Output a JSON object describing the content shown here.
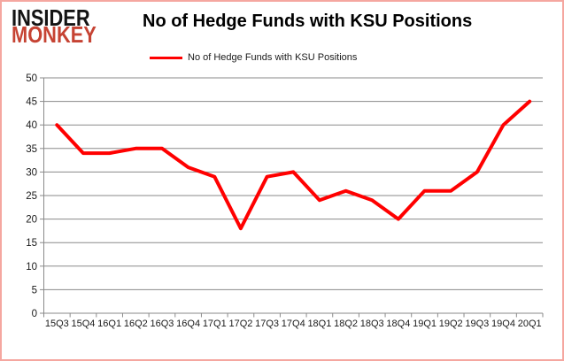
{
  "logo": {
    "line1": "INSIDER",
    "line2": "MONKEY"
  },
  "header": {
    "title": "No of Hedge Funds with KSU Positions"
  },
  "legend": {
    "label": "No of Hedge Funds with KSU Positions"
  },
  "colors": {
    "line": "#ff0000",
    "grid": "#8a8a8a",
    "axis": "#8a8a8a",
    "tick_label": "#1a1a1a",
    "frame_border": "#f5a7a0",
    "logo_accent": "#c64333",
    "logo_main": "#141414"
  },
  "chart_data": {
    "type": "line",
    "title": "No of Hedge Funds with KSU Positions",
    "categories": [
      "15Q3",
      "15Q4",
      "16Q1",
      "16Q2",
      "16Q3",
      "16Q4",
      "17Q1",
      "17Q2",
      "17Q3",
      "17Q4",
      "18Q1",
      "18Q2",
      "18Q3",
      "18Q4",
      "19Q1",
      "19Q2",
      "19Q3",
      "19Q4",
      "20Q1"
    ],
    "series": [
      {
        "name": "No of Hedge Funds with KSU Positions",
        "color": "#ff0000",
        "values": [
          40,
          34,
          34,
          35,
          35,
          31,
          29,
          18,
          29,
          30,
          24,
          26,
          24,
          20,
          26,
          26,
          30,
          40,
          45
        ]
      }
    ],
    "xlabel": "",
    "ylabel": "",
    "ylim": [
      0,
      50
    ],
    "ytick_step": 5,
    "grid": true,
    "legend_position": "top"
  }
}
